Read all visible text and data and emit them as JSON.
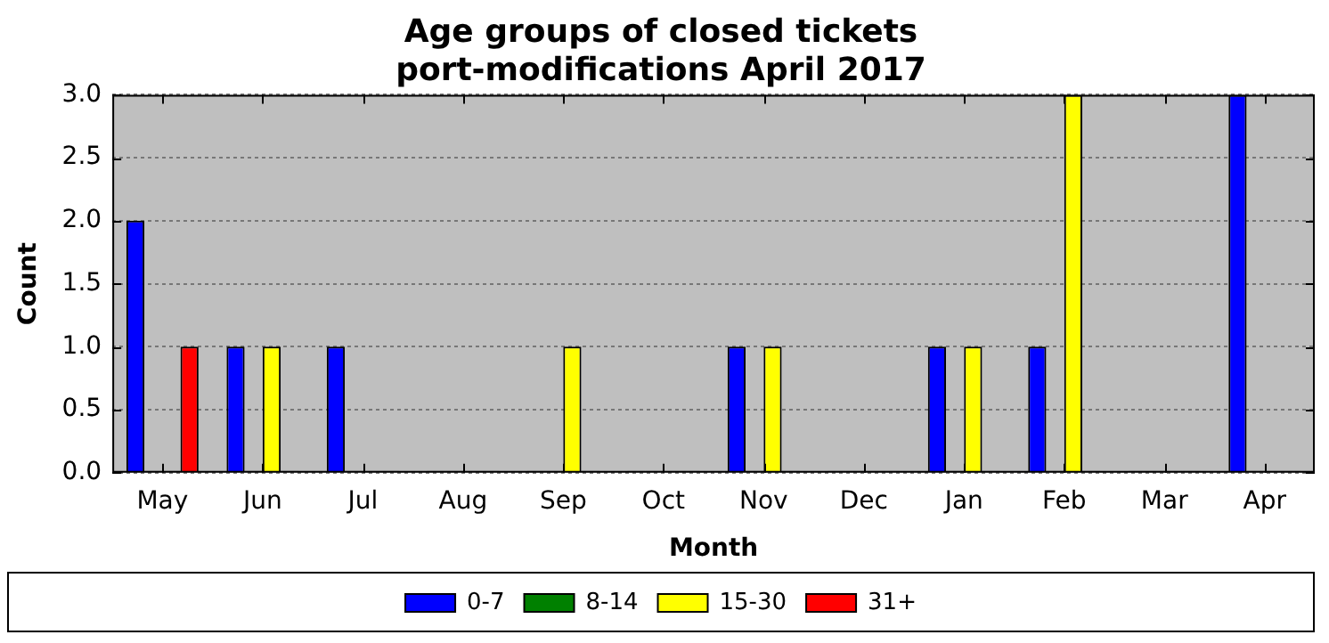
{
  "chart_data": {
    "type": "bar",
    "title": "Age groups of closed tickets\nport-modifications April 2017",
    "xlabel": "Month",
    "ylabel": "Count",
    "categories": [
      "May",
      "Jun",
      "Jul",
      "Aug",
      "Sep",
      "Oct",
      "Nov",
      "Dec",
      "Jan",
      "Feb",
      "Mar",
      "Apr"
    ],
    "series": [
      {
        "name": "0-7",
        "color": "#0000ff",
        "values": [
          2,
          1,
          1,
          0,
          0,
          0,
          1,
          0,
          1,
          1,
          0,
          3
        ]
      },
      {
        "name": "8-14",
        "color": "#008000",
        "values": [
          0,
          0,
          0,
          0,
          0,
          0,
          0,
          0,
          0,
          0,
          0,
          0
        ]
      },
      {
        "name": "15-30",
        "color": "#ffff00",
        "values": [
          0,
          1,
          0,
          0,
          1,
          0,
          1,
          0,
          1,
          3,
          0,
          0
        ]
      },
      {
        "name": "31+",
        "color": "#ff0000",
        "values": [
          1,
          0,
          0,
          0,
          0,
          0,
          0,
          0,
          0,
          0,
          0,
          0
        ]
      }
    ],
    "ylim": [
      0,
      3
    ],
    "yticks": [
      {
        "value": 0,
        "label": "0.0"
      },
      {
        "value": 0.5,
        "label": "0.5"
      },
      {
        "value": 1,
        "label": "1.0"
      },
      {
        "value": 1.5,
        "label": "1.5"
      },
      {
        "value": 2,
        "label": "2.0"
      },
      {
        "value": 2.5,
        "label": "2.5"
      },
      {
        "value": 3,
        "label": "3.0"
      }
    ],
    "grid": "y",
    "legend": "bottom"
  }
}
